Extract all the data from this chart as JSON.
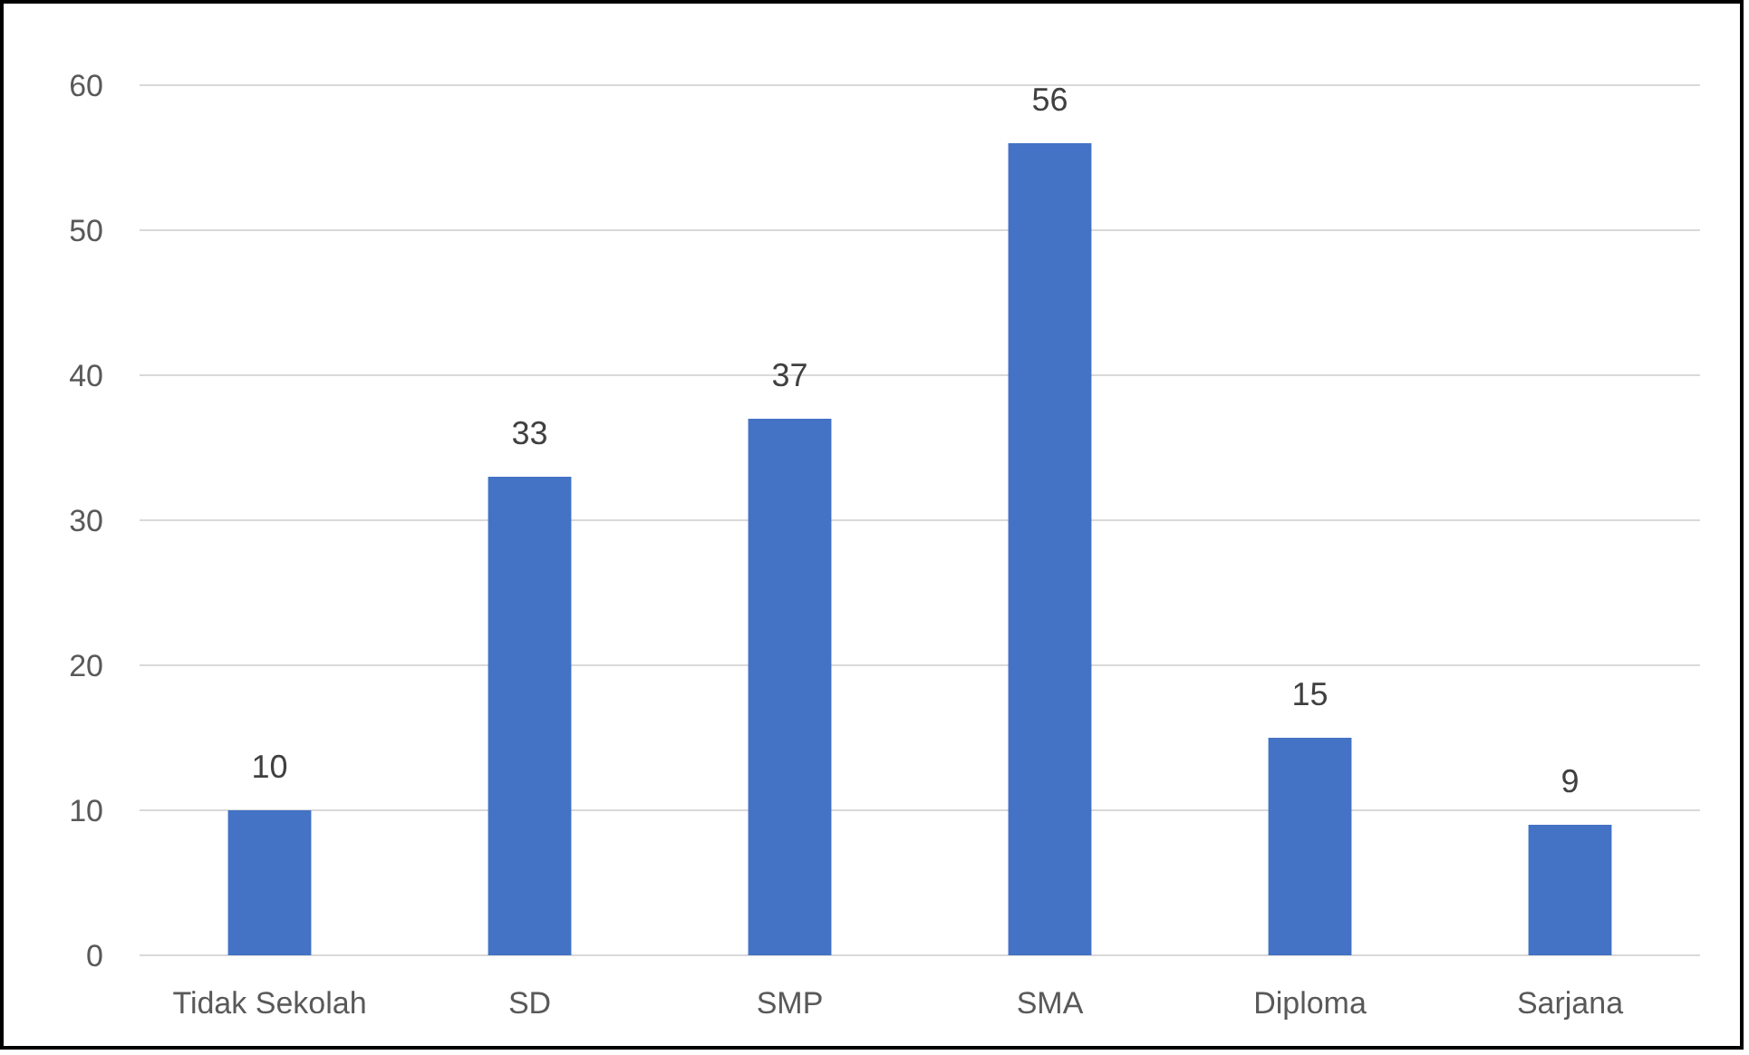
{
  "chart_data": {
    "type": "bar",
    "categories": [
      "Tidak Sekolah",
      "SD",
      "SMP",
      "SMA",
      "Diploma",
      "Sarjana"
    ],
    "values": [
      10,
      33,
      37,
      56,
      15,
      9
    ],
    "color": "#4472c4",
    "ylim": [
      0,
      60
    ],
    "yticks": [
      0,
      10,
      20,
      30,
      40,
      50,
      60
    ],
    "grid": "y",
    "data_labels": true
  }
}
